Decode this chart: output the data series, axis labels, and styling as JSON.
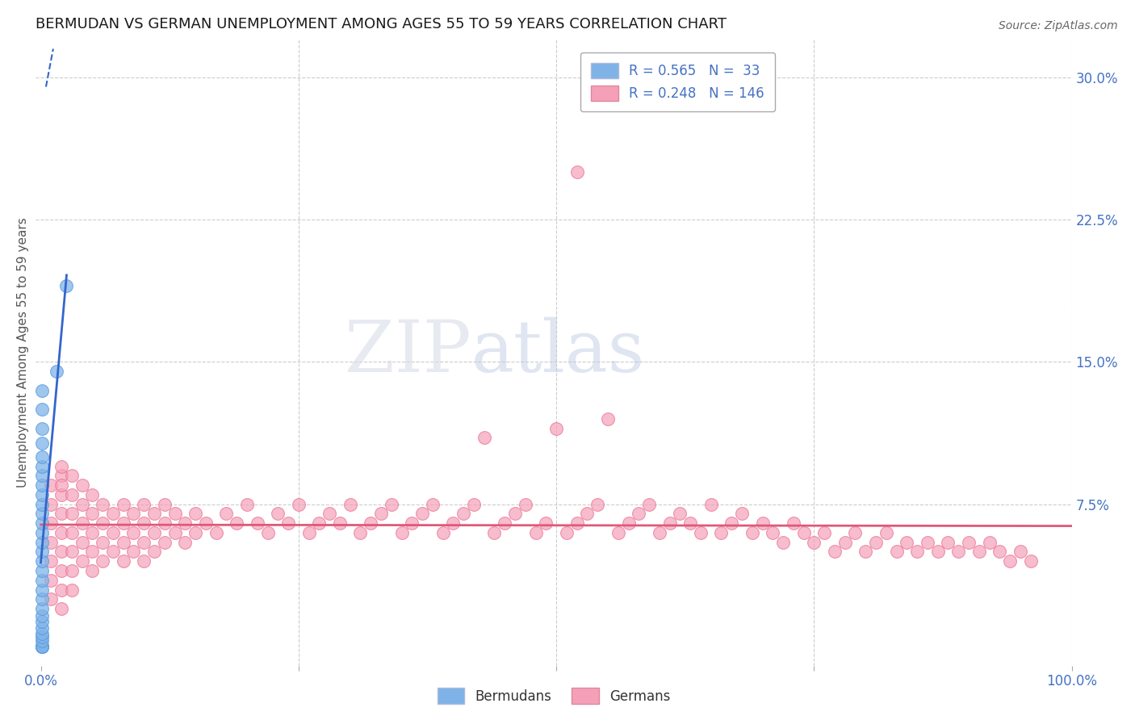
{
  "title": "BERMUDAN VS GERMAN UNEMPLOYMENT AMONG AGES 55 TO 59 YEARS CORRELATION CHART",
  "source": "Source: ZipAtlas.com",
  "ylabel": "Unemployment Among Ages 55 to 59 years",
  "xlim": [
    0.0,
    1.0
  ],
  "ylim": [
    -0.005,
    0.32
  ],
  "bermudan_color": "#7fb3e8",
  "bermudan_edge_color": "#5599dd",
  "german_color": "#f5a0b8",
  "german_edge_color": "#e87090",
  "line_blue": "#3366cc",
  "line_pink": "#e05878",
  "bermudan_R": 0.565,
  "bermudan_N": 33,
  "german_R": 0.248,
  "german_N": 146,
  "legend_label_blue": "Bermudans",
  "legend_label_pink": "Germans",
  "watermark_zip": "ZIP",
  "watermark_atlas": "atlas",
  "background_color": "#ffffff",
  "tick_label_color": "#4472c4",
  "title_color": "#1a1a1a",
  "axis_label_color": "#555555",
  "bermudan_x": [
    0.001,
    0.001,
    0.001,
    0.001,
    0.001,
    0.001,
    0.001,
    0.001,
    0.001,
    0.001,
    0.001,
    0.001,
    0.001,
    0.001,
    0.001,
    0.001,
    0.001,
    0.001,
    0.001,
    0.001,
    0.001,
    0.001,
    0.001,
    0.001,
    0.001,
    0.001,
    0.001,
    0.001,
    0.001,
    0.001,
    0.001,
    0.015,
    0.025
  ],
  "bermudan_y": [
    0.0,
    0.0,
    0.0,
    0.0,
    0.003,
    0.005,
    0.007,
    0.01,
    0.013,
    0.016,
    0.02,
    0.025,
    0.03,
    0.035,
    0.04,
    0.045,
    0.05,
    0.055,
    0.06,
    0.065,
    0.07,
    0.075,
    0.08,
    0.085,
    0.09,
    0.095,
    0.1,
    0.107,
    0.115,
    0.125,
    0.135,
    0.145,
    0.19
  ],
  "german_x": [
    0.01,
    0.01,
    0.01,
    0.01,
    0.01,
    0.01,
    0.01,
    0.02,
    0.02,
    0.02,
    0.02,
    0.02,
    0.02,
    0.02,
    0.02,
    0.02,
    0.02,
    0.03,
    0.03,
    0.03,
    0.03,
    0.03,
    0.03,
    0.03,
    0.04,
    0.04,
    0.04,
    0.04,
    0.04,
    0.05,
    0.05,
    0.05,
    0.05,
    0.05,
    0.06,
    0.06,
    0.06,
    0.06,
    0.07,
    0.07,
    0.07,
    0.08,
    0.08,
    0.08,
    0.08,
    0.09,
    0.09,
    0.09,
    0.1,
    0.1,
    0.1,
    0.1,
    0.11,
    0.11,
    0.11,
    0.12,
    0.12,
    0.12,
    0.13,
    0.13,
    0.14,
    0.14,
    0.15,
    0.15,
    0.16,
    0.17,
    0.18,
    0.19,
    0.2,
    0.21,
    0.22,
    0.23,
    0.24,
    0.25,
    0.26,
    0.27,
    0.28,
    0.29,
    0.3,
    0.31,
    0.32,
    0.33,
    0.34,
    0.35,
    0.36,
    0.37,
    0.38,
    0.39,
    0.4,
    0.41,
    0.42,
    0.43,
    0.44,
    0.45,
    0.46,
    0.47,
    0.48,
    0.49,
    0.5,
    0.51,
    0.52,
    0.53,
    0.54,
    0.55,
    0.56,
    0.57,
    0.58,
    0.59,
    0.6,
    0.61,
    0.62,
    0.63,
    0.64,
    0.65,
    0.66,
    0.67,
    0.68,
    0.69,
    0.7,
    0.71,
    0.72,
    0.73,
    0.74,
    0.75,
    0.76,
    0.77,
    0.78,
    0.79,
    0.8,
    0.81,
    0.82,
    0.83,
    0.84,
    0.85,
    0.86,
    0.87,
    0.88,
    0.89,
    0.9,
    0.91,
    0.92,
    0.93,
    0.94,
    0.95,
    0.96,
    0.52
  ],
  "german_y": [
    0.085,
    0.075,
    0.065,
    0.055,
    0.045,
    0.035,
    0.025,
    0.09,
    0.08,
    0.07,
    0.06,
    0.05,
    0.04,
    0.03,
    0.095,
    0.085,
    0.02,
    0.08,
    0.07,
    0.06,
    0.05,
    0.04,
    0.09,
    0.03,
    0.075,
    0.065,
    0.055,
    0.045,
    0.085,
    0.07,
    0.06,
    0.05,
    0.08,
    0.04,
    0.065,
    0.055,
    0.075,
    0.045,
    0.06,
    0.07,
    0.05,
    0.065,
    0.075,
    0.055,
    0.045,
    0.06,
    0.07,
    0.05,
    0.065,
    0.075,
    0.055,
    0.045,
    0.06,
    0.07,
    0.05,
    0.065,
    0.075,
    0.055,
    0.06,
    0.07,
    0.065,
    0.055,
    0.06,
    0.07,
    0.065,
    0.06,
    0.07,
    0.065,
    0.075,
    0.065,
    0.06,
    0.07,
    0.065,
    0.075,
    0.06,
    0.065,
    0.07,
    0.065,
    0.075,
    0.06,
    0.065,
    0.07,
    0.075,
    0.06,
    0.065,
    0.07,
    0.075,
    0.06,
    0.065,
    0.07,
    0.075,
    0.11,
    0.06,
    0.065,
    0.07,
    0.075,
    0.06,
    0.065,
    0.115,
    0.06,
    0.065,
    0.07,
    0.075,
    0.12,
    0.06,
    0.065,
    0.07,
    0.075,
    0.06,
    0.065,
    0.07,
    0.065,
    0.06,
    0.075,
    0.06,
    0.065,
    0.07,
    0.06,
    0.065,
    0.06,
    0.055,
    0.065,
    0.06,
    0.055,
    0.06,
    0.05,
    0.055,
    0.06,
    0.05,
    0.055,
    0.06,
    0.05,
    0.055,
    0.05,
    0.055,
    0.05,
    0.055,
    0.05,
    0.055,
    0.05,
    0.055,
    0.05,
    0.045,
    0.05,
    0.045,
    0.25
  ]
}
